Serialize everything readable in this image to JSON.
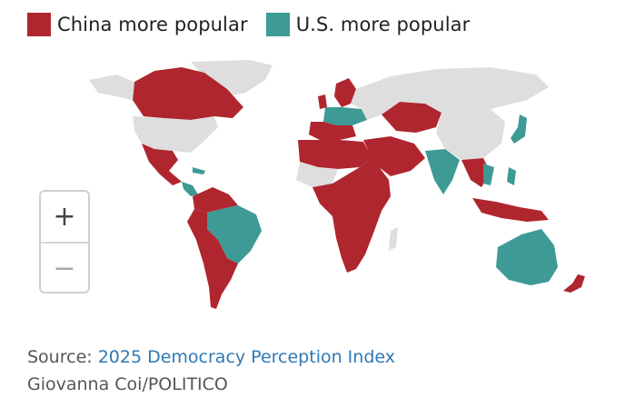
{
  "legend": {
    "items": [
      {
        "label": "China more popular",
        "color": "#b0262e"
      },
      {
        "label": "U.S. more popular",
        "color": "#3e9a94"
      }
    ]
  },
  "map": {
    "no_data_color": "#dedede",
    "china_color": "#b0262e",
    "us_color": "#3e9a94"
  },
  "zoom": {
    "in_icon": "plus-icon",
    "out_icon": "minus-icon",
    "in_label": "+",
    "out_label": "−"
  },
  "source": {
    "prefix": "Source: ",
    "link_text": "2025 Democracy Perception Index"
  },
  "credit": "Giovanna Coi/POLITICO"
}
